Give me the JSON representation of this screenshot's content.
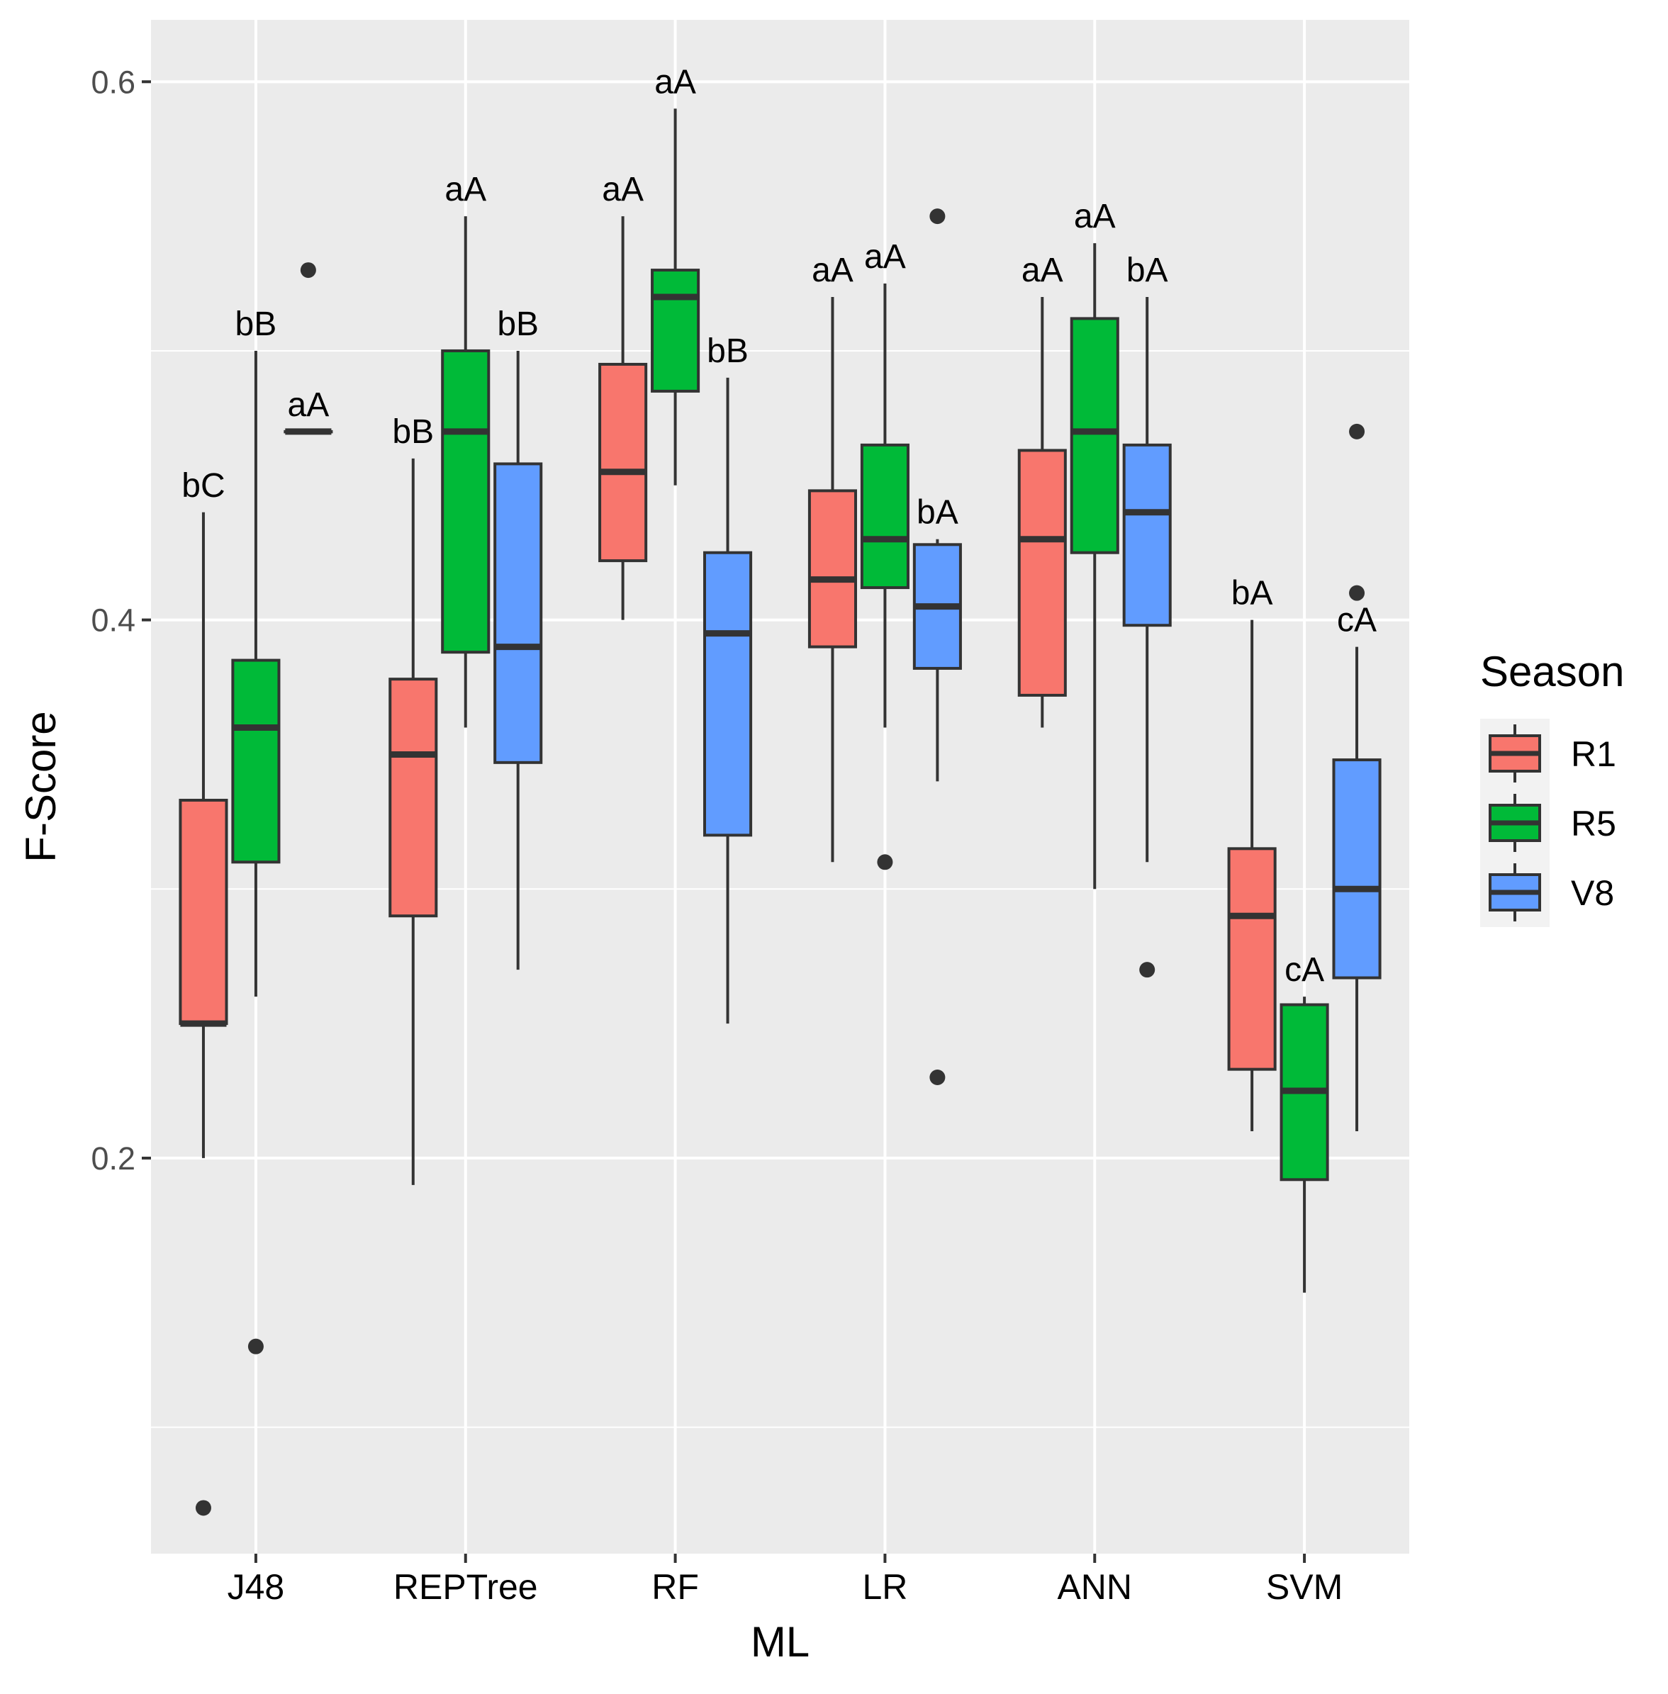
{
  "chart_data": {
    "type": "boxplot",
    "xlabel": "ML",
    "ylabel": "F-Score",
    "ylim": [
      0.053,
      0.623
    ],
    "y_ticks": [
      0.2,
      0.4,
      0.6
    ],
    "y_tick_labels": [
      "0.2",
      "0.4",
      "0.6"
    ],
    "grid": true,
    "categories": [
      "J48",
      "REPTree",
      "RF",
      "LR",
      "ANN",
      "SVM"
    ],
    "legend": {
      "title": "Season",
      "position": "right",
      "entries": [
        {
          "name": "R1",
          "color": "#F8766D"
        },
        {
          "name": "R5",
          "color": "#00BA38"
        },
        {
          "name": "V8",
          "color": "#619CFF"
        }
      ]
    },
    "groups": [
      {
        "category": "J48",
        "boxes": [
          {
            "series": "R1",
            "whisker_low": 0.2,
            "q1": 0.25,
            "median": 0.25,
            "q3": 0.333,
            "whisker_high": 0.44,
            "outliers": [
              0.07
            ],
            "label": "bC"
          },
          {
            "series": "R5",
            "whisker_low": 0.26,
            "q1": 0.31,
            "median": 0.36,
            "q3": 0.385,
            "whisker_high": 0.5,
            "outliers": [
              0.13
            ],
            "label": "bB"
          },
          {
            "series": "V8",
            "whisker_low": 0.47,
            "q1": 0.47,
            "median": 0.47,
            "q3": 0.47,
            "whisker_high": 0.47,
            "outliers": [
              0.53
            ],
            "label": "aA"
          }
        ]
      },
      {
        "category": "REPTree",
        "boxes": [
          {
            "series": "R1",
            "whisker_low": 0.19,
            "q1": 0.29,
            "median": 0.35,
            "q3": 0.378,
            "whisker_high": 0.46,
            "outliers": [],
            "label": "bB"
          },
          {
            "series": "R5",
            "whisker_low": 0.36,
            "q1": 0.388,
            "median": 0.47,
            "q3": 0.5,
            "whisker_high": 0.55,
            "outliers": [],
            "label": "aA"
          },
          {
            "series": "V8",
            "whisker_low": 0.27,
            "q1": 0.347,
            "median": 0.39,
            "q3": 0.458,
            "whisker_high": 0.5,
            "outliers": [],
            "label": "bB"
          }
        ]
      },
      {
        "category": "RF",
        "boxes": [
          {
            "series": "R1",
            "whisker_low": 0.4,
            "q1": 0.422,
            "median": 0.455,
            "q3": 0.495,
            "whisker_high": 0.55,
            "outliers": [],
            "label": "aA"
          },
          {
            "series": "R5",
            "whisker_low": 0.45,
            "q1": 0.485,
            "median": 0.52,
            "q3": 0.53,
            "whisker_high": 0.59,
            "outliers": [],
            "label": "aA"
          },
          {
            "series": "V8",
            "whisker_low": 0.25,
            "q1": 0.32,
            "median": 0.395,
            "q3": 0.425,
            "whisker_high": 0.49,
            "outliers": [],
            "label": "bB"
          }
        ]
      },
      {
        "category": "LR",
        "boxes": [
          {
            "series": "R1",
            "whisker_low": 0.31,
            "q1": 0.39,
            "median": 0.415,
            "q3": 0.448,
            "whisker_high": 0.52,
            "outliers": [],
            "label": "aA"
          },
          {
            "series": "R5",
            "whisker_low": 0.36,
            "q1": 0.412,
            "median": 0.43,
            "q3": 0.465,
            "whisker_high": 0.525,
            "outliers": [
              0.31
            ],
            "label": "aA"
          },
          {
            "series": "V8",
            "whisker_low": 0.34,
            "q1": 0.382,
            "median": 0.405,
            "q3": 0.428,
            "whisker_high": 0.43,
            "outliers": [
              0.55,
              0.23
            ],
            "label": "bA"
          }
        ]
      },
      {
        "category": "ANN",
        "boxes": [
          {
            "series": "R1",
            "whisker_low": 0.36,
            "q1": 0.372,
            "median": 0.43,
            "q3": 0.463,
            "whisker_high": 0.52,
            "outliers": [],
            "label": "aA"
          },
          {
            "series": "R5",
            "whisker_low": 0.3,
            "q1": 0.425,
            "median": 0.47,
            "q3": 0.512,
            "whisker_high": 0.54,
            "outliers": [],
            "label": "aA"
          },
          {
            "series": "V8",
            "whisker_low": 0.31,
            "q1": 0.398,
            "median": 0.44,
            "q3": 0.465,
            "whisker_high": 0.52,
            "outliers": [
              0.27
            ],
            "label": "bA"
          }
        ]
      },
      {
        "category": "SVM",
        "boxes": [
          {
            "series": "R1",
            "whisker_low": 0.21,
            "q1": 0.233,
            "median": 0.29,
            "q3": 0.315,
            "whisker_high": 0.4,
            "outliers": [],
            "label": "bA"
          },
          {
            "series": "R5",
            "whisker_low": 0.15,
            "q1": 0.192,
            "median": 0.225,
            "q3": 0.257,
            "whisker_high": 0.26,
            "outliers": [],
            "label": "cA"
          },
          {
            "series": "V8",
            "whisker_low": 0.21,
            "q1": 0.267,
            "median": 0.3,
            "q3": 0.348,
            "whisker_high": 0.39,
            "outliers": [
              0.47,
              0.41
            ],
            "label": "cA"
          }
        ]
      }
    ]
  }
}
